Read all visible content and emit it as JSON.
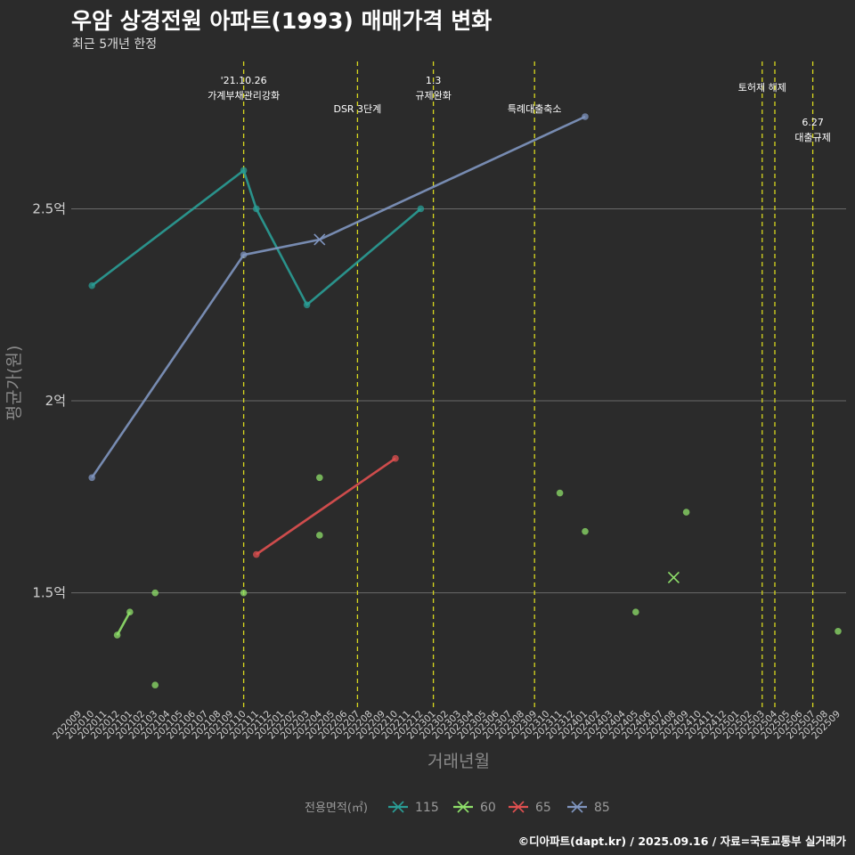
{
  "header": {
    "title": "우암 상경전원 아파트(1993) 매매가격 변화",
    "subtitle": "최근 5개년 한정"
  },
  "caption": "©디아파트(dapt.kr) / 2025.09.16 / 자료=국토교통부 실거래가",
  "chart_data": {
    "type": "line",
    "xlabel": "거래년월",
    "ylabel": "평균가(원)",
    "ylim": [
      1.2,
      2.9
    ],
    "y_ticks": [
      {
        "value": 1.5,
        "label": "1.5억"
      },
      {
        "value": 2.0,
        "label": "2억"
      },
      {
        "value": 2.5,
        "label": "2.5억"
      }
    ],
    "x_categories": [
      "202009",
      "202010",
      "202011",
      "202012",
      "202101",
      "202102",
      "202103",
      "202104",
      "202105",
      "202106",
      "202107",
      "202108",
      "202109",
      "202110",
      "202111",
      "202112",
      "202201",
      "202202",
      "202203",
      "202204",
      "202205",
      "202206",
      "202207",
      "202208",
      "202209",
      "202210",
      "202211",
      "202212",
      "202301",
      "202302",
      "202303",
      "202304",
      "202305",
      "202306",
      "202307",
      "202308",
      "202309",
      "202310",
      "202311",
      "202312",
      "202401",
      "202402",
      "202403",
      "202404",
      "202405",
      "202406",
      "202407",
      "202408",
      "202409",
      "202410",
      "202411",
      "202412",
      "202501",
      "202502",
      "202503",
      "202504",
      "202505",
      "202506",
      "202507",
      "202508",
      "202509"
    ],
    "events": [
      {
        "x": 13,
        "lines": [
          "'21.10.26",
          "가계부채관리강화"
        ],
        "level": 0
      },
      {
        "x": 22,
        "lines": [
          "DSR 3단계"
        ],
        "level": 1
      },
      {
        "x": 28,
        "lines": [
          "1.3",
          "규제완화"
        ],
        "level": 0
      },
      {
        "x": 36,
        "lines": [
          "특례대출축소"
        ],
        "level": 1
      },
      {
        "x": 54,
        "lines": [
          "토허제 해제"
        ],
        "level": 2
      },
      {
        "x": 55,
        "lines": [],
        "level": 2
      },
      {
        "x": 58,
        "lines": [
          "6.27",
          "대출규제"
        ],
        "level": 3
      }
    ],
    "series": [
      {
        "name": "115",
        "color": "#2a9d96",
        "line": [
          [
            1,
            2.3
          ],
          [
            13,
            2.6
          ],
          [
            14,
            2.5
          ],
          [
            18,
            2.25
          ],
          [
            27,
            2.5
          ]
        ],
        "points": [
          [
            1,
            2.3
          ],
          [
            13,
            2.6
          ],
          [
            14,
            2.5
          ],
          [
            18,
            2.25
          ],
          [
            27,
            2.5
          ]
        ],
        "x_marks": []
      },
      {
        "name": "60",
        "color": "#8fe06a",
        "line": [
          [
            3,
            1.39
          ],
          [
            4,
            1.45
          ]
        ],
        "points": [
          [
            3,
            1.39
          ],
          [
            4,
            1.45
          ],
          [
            6,
            1.5
          ],
          [
            6,
            1.26
          ],
          [
            13,
            1.5
          ],
          [
            19,
            1.8
          ],
          [
            19,
            1.65
          ],
          [
            38,
            1.76
          ],
          [
            40,
            1.66
          ],
          [
            44,
            1.45
          ],
          [
            48,
            1.71
          ],
          [
            60,
            1.4
          ]
        ],
        "x_marks": [
          [
            47,
            1.54
          ]
        ]
      },
      {
        "name": "65",
        "color": "#e05050",
        "line": [
          [
            14,
            1.6
          ],
          [
            25,
            1.85
          ]
        ],
        "points": [
          [
            14,
            1.6
          ],
          [
            25,
            1.85
          ]
        ],
        "x_marks": []
      },
      {
        "name": "85",
        "color": "#8096c0",
        "line": [
          [
            1,
            1.8
          ],
          [
            13,
            2.38
          ],
          [
            19,
            2.42
          ],
          [
            40,
            2.74
          ]
        ],
        "points": [
          [
            1,
            1.8
          ],
          [
            13,
            2.38
          ],
          [
            40,
            2.74
          ]
        ],
        "x_marks": [
          [
            19,
            2.42
          ]
        ]
      }
    ],
    "legend": {
      "title": "전용면적(㎡)",
      "position": "bottom",
      "items": [
        "115",
        "60",
        "65",
        "85"
      ]
    }
  }
}
